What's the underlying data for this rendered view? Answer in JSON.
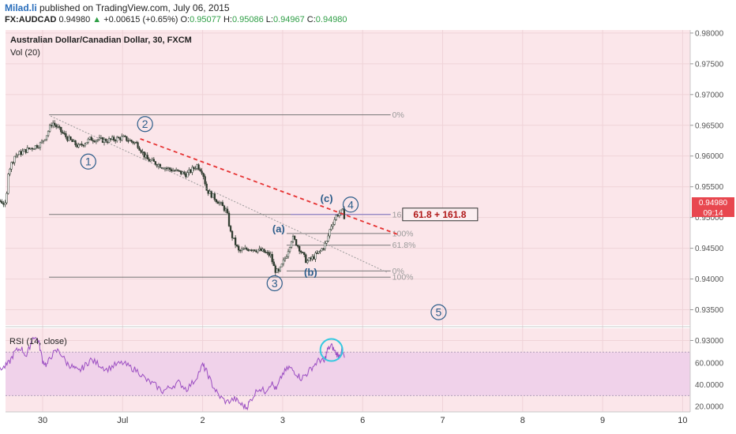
{
  "header": {
    "brand": "Milad.li",
    "published_text": " published on TradingView.com, July 06, 2015",
    "symbol": "FX:AUDCAD",
    "last": "0.94980",
    "change_arrow": "▲",
    "change": "+0.00615 (+0.65%)",
    "o_label": "O:",
    "o_value": "0.95077",
    "h_label": "H:",
    "h_value": "0.95086",
    "l_label": "L:",
    "l_value": "0.94967",
    "c_label": "C:",
    "c_value": "0.94980"
  },
  "colors": {
    "main_bg": "#fbe6ea",
    "rsi_bg": "#fbe6ea",
    "rsi_band": "#f0d2ea",
    "rsi_line": "#9b4ec2",
    "candle": "#2f3b2f",
    "trend": "#e63232",
    "wave": "#2c5d8a",
    "fib": "#777777",
    "circle": "#35c9e0",
    "price_badge": "#e8474f"
  },
  "chart_data": {
    "type": "candlestick",
    "title": "Australian Dollar/Canadian Dollar, 30, FXCM",
    "volume_label": "Vol (20)",
    "ylim": [
      0.9325,
      0.9805
    ],
    "y_ticks": [
      "0.98000",
      "0.97500",
      "0.97000",
      "0.96500",
      "0.96000",
      "0.95500",
      "0.95000",
      "0.94500",
      "0.94000",
      "0.93500",
      "0.93000"
    ],
    "x_ticks": [
      {
        "label": "30",
        "pos": 0
      },
      {
        "label": "Jul",
        "pos": 1
      },
      {
        "label": "2",
        "pos": 2
      },
      {
        "label": "3",
        "pos": 3
      },
      {
        "label": "6",
        "pos": 4
      },
      {
        "label": "7",
        "pos": 5
      },
      {
        "label": "8",
        "pos": 6
      },
      {
        "label": "9",
        "pos": 7
      },
      {
        "label": "10",
        "pos": 8
      }
    ],
    "last_price_label": "0.94980",
    "time_label": "09:14",
    "price_path": [
      [
        -0.97,
        0.9465
      ],
      [
        -0.9,
        0.9515
      ],
      [
        -0.8,
        0.9535
      ],
      [
        -0.6,
        0.953
      ],
      [
        -0.5,
        0.9525
      ],
      [
        -0.46,
        0.9518
      ],
      [
        -0.43,
        0.9575
      ],
      [
        -0.35,
        0.96
      ],
      [
        -0.2,
        0.961
      ],
      [
        -0.02,
        0.962
      ],
      [
        0.05,
        0.9635
      ],
      [
        0.12,
        0.9655
      ],
      [
        0.3,
        0.963
      ],
      [
        0.45,
        0.9615
      ],
      [
        0.6,
        0.9628
      ],
      [
        0.8,
        0.9625
      ],
      [
        1.0,
        0.963
      ],
      [
        1.18,
        0.962
      ],
      [
        1.3,
        0.9595
      ],
      [
        1.55,
        0.958
      ],
      [
        1.8,
        0.957
      ],
      [
        1.93,
        0.9585
      ],
      [
        2.0,
        0.9575
      ],
      [
        2.05,
        0.9545
      ],
      [
        2.2,
        0.9525
      ],
      [
        2.3,
        0.951
      ],
      [
        2.35,
        0.9475
      ],
      [
        2.45,
        0.9445
      ],
      [
        2.6,
        0.945
      ],
      [
        2.75,
        0.9445
      ],
      [
        2.85,
        0.9438
      ],
      [
        2.9,
        0.9415
      ],
      [
        2.95,
        0.941
      ],
      [
        3.05,
        0.944
      ],
      [
        3.12,
        0.9468
      ],
      [
        3.2,
        0.9452
      ],
      [
        3.3,
        0.9428
      ],
      [
        3.38,
        0.9435
      ],
      [
        3.47,
        0.9445
      ],
      [
        3.55,
        0.946
      ],
      [
        3.6,
        0.9485
      ],
      [
        3.68,
        0.9505
      ],
      [
        3.75,
        0.951
      ],
      [
        3.78,
        0.9498
      ]
    ],
    "annotations": [
      {
        "label": "1",
        "x": 0.57,
        "y": 0.9591
      },
      {
        "label": "2",
        "x": 1.28,
        "y": 0.9652
      },
      {
        "label": "3",
        "x": 2.9,
        "y": 0.9393
      },
      {
        "label": "4",
        "x": 3.85,
        "y": 0.9521
      },
      {
        "label": "5",
        "x": 4.95,
        "y": 0.9346
      }
    ],
    "wave_labels": [
      {
        "label": "(a)",
        "x": 2.95,
        "y": 0.9476
      },
      {
        "label": "(b)",
        "x": 3.35,
        "y": 0.9405
      },
      {
        "label": "(c)",
        "x": 3.55,
        "y": 0.9525
      }
    ],
    "fib_levels": [
      {
        "label": "0%",
        "x1": 0.08,
        "x2": 4.35,
        "y": 0.9667,
        "lx": 4.35
      },
      {
        "label": "161.8%",
        "x1": 0.08,
        "x2": 4.35,
        "y": 0.9505,
        "lx": 4.35
      },
      {
        "label": "100%",
        "x1": 3.05,
        "x2": 4.35,
        "y": 0.9474,
        "lx": 4.35
      },
      {
        "label": "61.8%",
        "x1": 3.05,
        "x2": 4.35,
        "y": 0.9455,
        "lx": 4.35
      },
      {
        "label": "0%",
        "x1": 3.05,
        "x2": 4.35,
        "y": 0.9413,
        "lx": 4.35
      },
      {
        "label": "100%",
        "x1": 0.08,
        "x2": 4.35,
        "y": 0.9403,
        "lx": 4.35
      }
    ],
    "fib_box_label": "61.8 + 161.8",
    "rsi": {
      "label": "RSI (14, close)",
      "ylim": [
        15,
        92
      ],
      "y_ticks": [
        "60.0000",
        "40.0000",
        "20.0000"
      ],
      "upper": 70,
      "lower": 30,
      "values": [
        [
          -0.97,
          44
        ],
        [
          -0.9,
          58
        ],
        [
          -0.8,
          60
        ],
        [
          -0.7,
          63
        ],
        [
          -0.6,
          58
        ],
        [
          -0.5,
          55
        ],
        [
          -0.42,
          60
        ],
        [
          -0.35,
          70
        ],
        [
          -0.27,
          74
        ],
        [
          -0.2,
          66
        ],
        [
          -0.12,
          85
        ],
        [
          -0.05,
          80
        ],
        [
          0.0,
          62
        ],
        [
          0.05,
          58
        ],
        [
          0.12,
          68
        ],
        [
          0.2,
          72
        ],
        [
          0.3,
          60
        ],
        [
          0.38,
          56
        ],
        [
          0.45,
          52
        ],
        [
          0.52,
          57
        ],
        [
          0.6,
          63
        ],
        [
          0.7,
          59
        ],
        [
          0.8,
          54
        ],
        [
          0.9,
          58
        ],
        [
          1.0,
          60
        ],
        [
          1.1,
          56
        ],
        [
          1.2,
          52
        ],
        [
          1.3,
          44
        ],
        [
          1.4,
          40
        ],
        [
          1.5,
          34
        ],
        [
          1.6,
          38
        ],
        [
          1.7,
          42
        ],
        [
          1.8,
          36
        ],
        [
          1.9,
          44
        ],
        [
          2.0,
          58
        ],
        [
          2.05,
          52
        ],
        [
          2.12,
          40
        ],
        [
          2.2,
          30
        ],
        [
          2.3,
          24
        ],
        [
          2.4,
          27
        ],
        [
          2.48,
          22
        ],
        [
          2.55,
          19
        ],
        [
          2.6,
          26
        ],
        [
          2.7,
          37
        ],
        [
          2.78,
          34
        ],
        [
          2.86,
          42
        ],
        [
          2.92,
          35
        ],
        [
          3.0,
          50
        ],
        [
          3.08,
          56
        ],
        [
          3.15,
          52
        ],
        [
          3.23,
          46
        ],
        [
          3.3,
          50
        ],
        [
          3.38,
          57
        ],
        [
          3.46,
          63
        ],
        [
          3.52,
          61
        ],
        [
          3.56,
          72
        ],
        [
          3.61,
          76
        ],
        [
          3.66,
          70
        ],
        [
          3.7,
          66
        ],
        [
          3.74,
          72
        ],
        [
          3.78,
          63
        ]
      ]
    }
  }
}
